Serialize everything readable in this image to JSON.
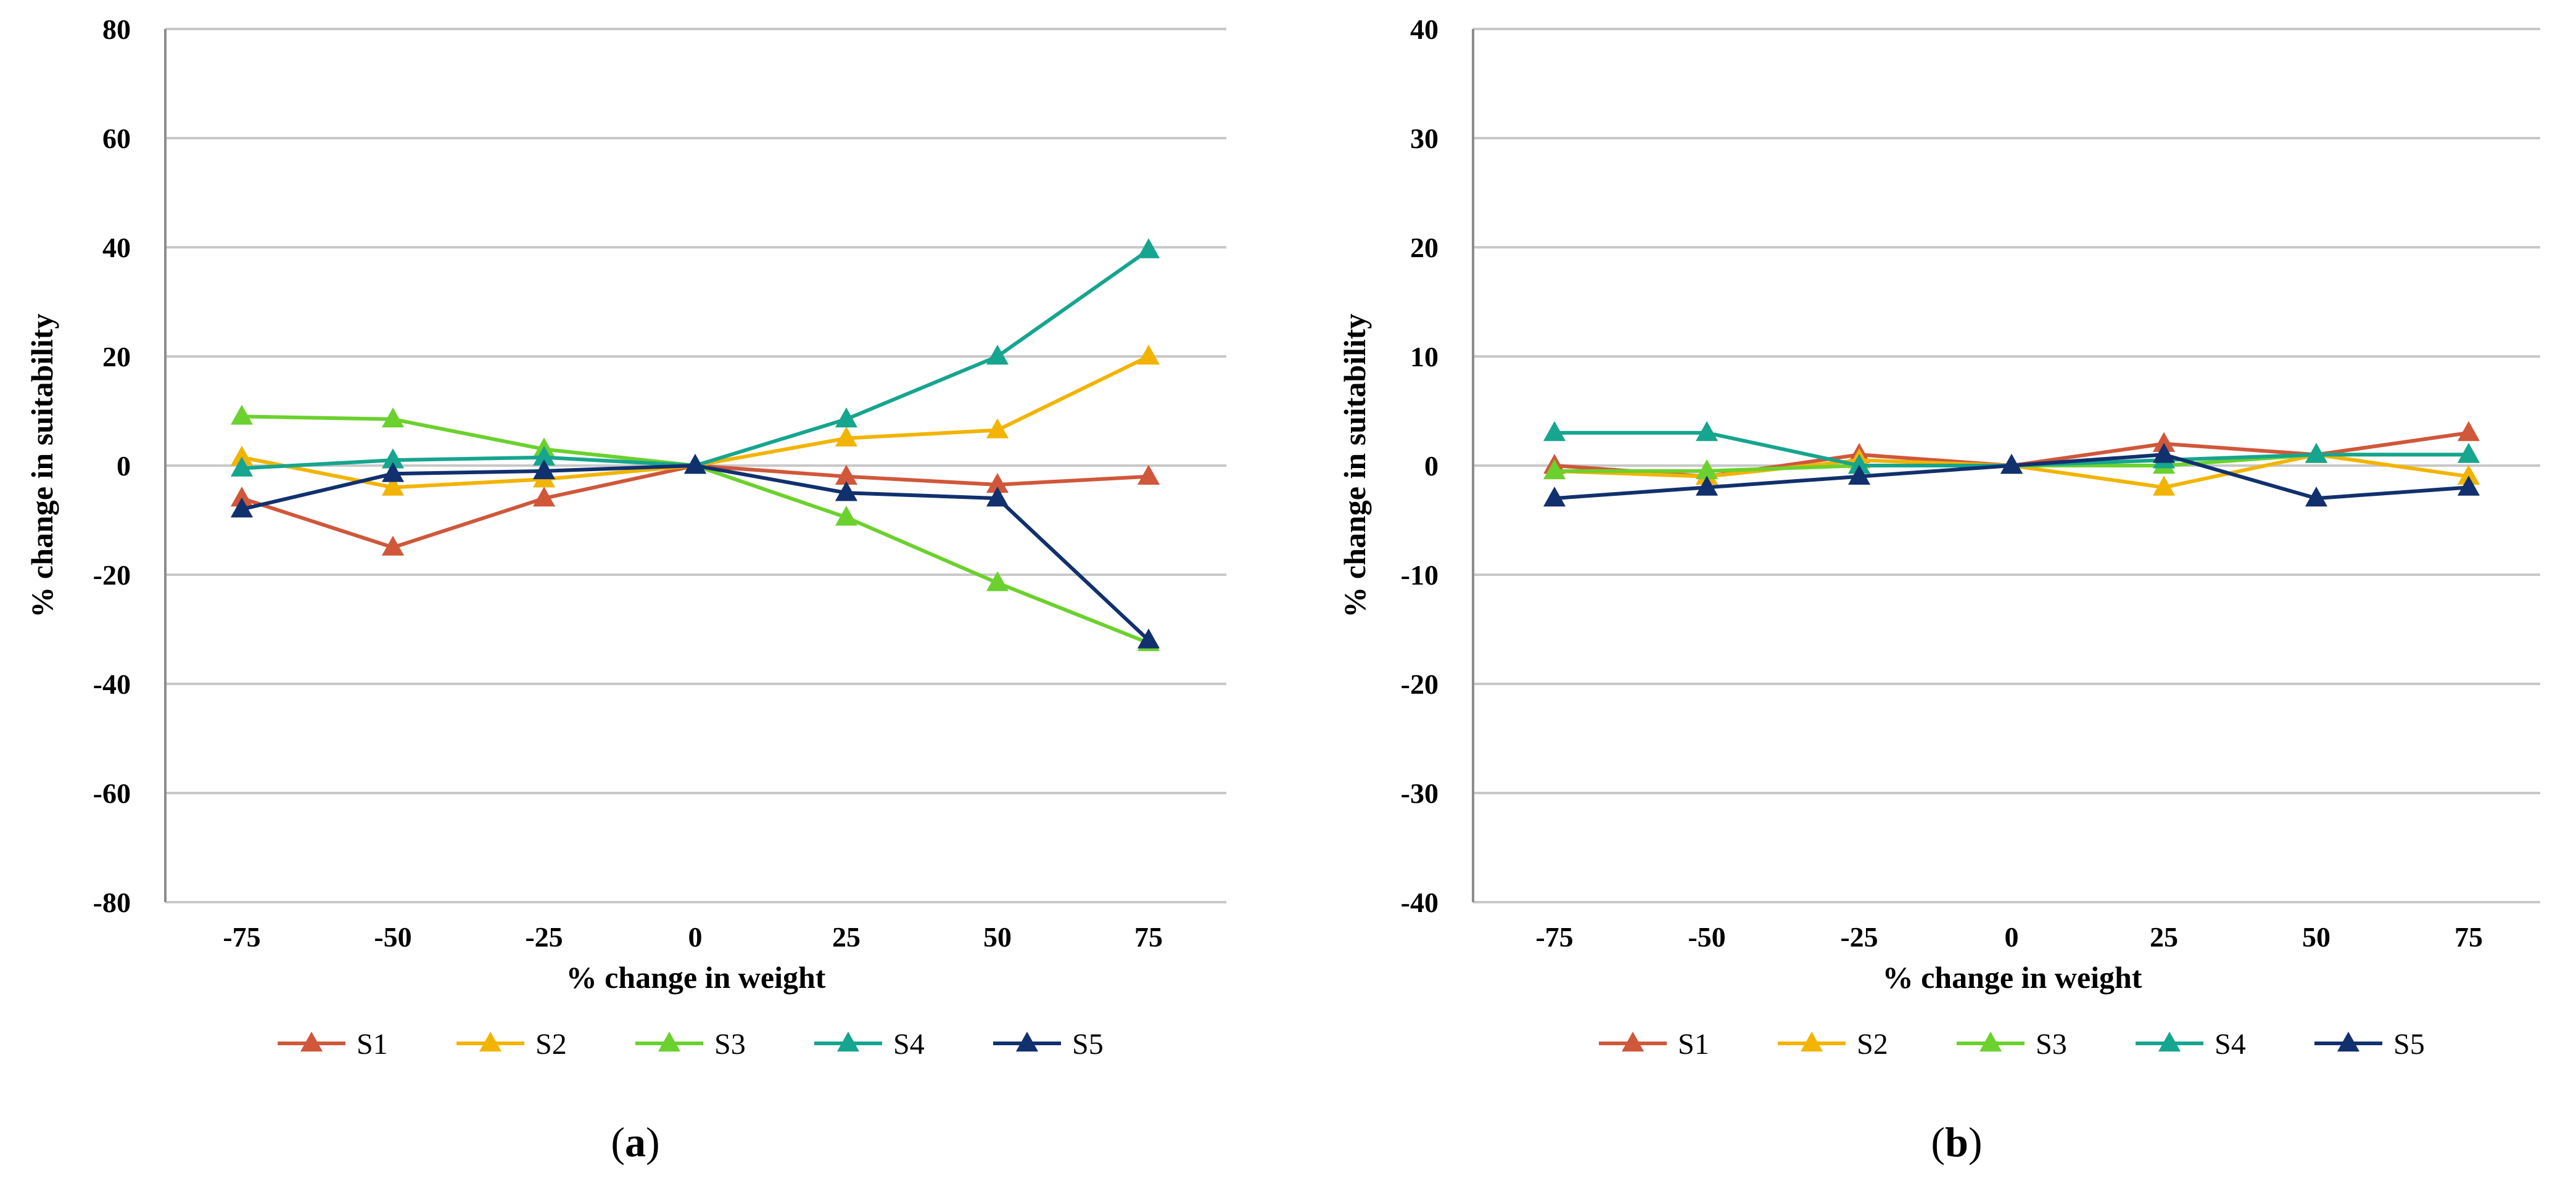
{
  "colors": {
    "S1": "#D0573A",
    "S2": "#F2B400",
    "S3": "#6BD12E",
    "S4": "#16A58E",
    "S5": "#11306E",
    "grid": "#C8C8C8",
    "axis": "#8C8C8C"
  },
  "chart_data": [
    {
      "type": "line",
      "panel_label": {
        "open": "(",
        "letter": "a",
        "close": ")"
      },
      "xlabel": "% change in weight",
      "ylabel": "% change in suitability",
      "categories": [
        "-75",
        "-50",
        "-25",
        "0",
        "25",
        "50",
        "75"
      ],
      "ylim": [
        -80,
        80
      ],
      "yticks": [
        80,
        60,
        40,
        20,
        0,
        -20,
        -40,
        -60,
        -80
      ],
      "grid": "horizontal",
      "legend": "bottom",
      "marker": "triangle",
      "series": [
        {
          "name": "S1",
          "values": [
            -6,
            -15,
            -6,
            0,
            -2,
            -3.5,
            -2
          ]
        },
        {
          "name": "S2",
          "values": [
            1.5,
            -4,
            -2.5,
            0,
            5,
            6.5,
            20
          ]
        },
        {
          "name": "S3",
          "values": [
            9,
            8.5,
            3,
            0,
            -9.5,
            -21.5,
            -32.5
          ]
        },
        {
          "name": "S4",
          "values": [
            -0.5,
            1,
            1.5,
            0,
            8.5,
            20,
            39.5
          ]
        },
        {
          "name": "S5",
          "values": [
            -8,
            -1.5,
            -1,
            0,
            -5,
            -6,
            -32
          ]
        }
      ]
    },
    {
      "type": "line",
      "panel_label": {
        "open": "(",
        "letter": "b",
        "close": ")"
      },
      "xlabel": "% change in weight",
      "ylabel": "% change in suitability",
      "categories": [
        "-75",
        "-50",
        "-25",
        "0",
        "25",
        "50",
        "75"
      ],
      "ylim": [
        -40,
        40
      ],
      "yticks": [
        40,
        30,
        20,
        10,
        0,
        -10,
        -20,
        -30,
        -40
      ],
      "grid": "horizontal",
      "legend": "bottom",
      "marker": "triangle",
      "series": [
        {
          "name": "S1",
          "values": [
            0,
            -1,
            1,
            0,
            2,
            1,
            3
          ]
        },
        {
          "name": "S2",
          "values": [
            -0.5,
            -1,
            0.5,
            0,
            -2,
            1,
            -1
          ]
        },
        {
          "name": "S3",
          "values": [
            -0.5,
            -0.5,
            0,
            0,
            0,
            1,
            1
          ]
        },
        {
          "name": "S4",
          "values": [
            3,
            3,
            0,
            0,
            0.5,
            1,
            1
          ]
        },
        {
          "name": "S5",
          "values": [
            -3,
            -2,
            -1,
            0,
            1,
            -3,
            -2
          ]
        }
      ]
    }
  ]
}
